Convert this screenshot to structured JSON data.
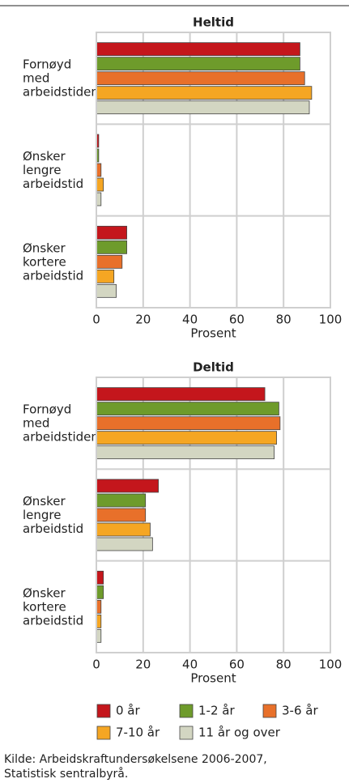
{
  "chart_data": [
    {
      "type": "bar",
      "orientation": "horizontal",
      "title": "Heltid",
      "xlabel": "Prosent",
      "categories": [
        "Fornøyd med arbeidstiden",
        "Ønsker lengre arbeidstid",
        "Ønsker kortere arbeidstid"
      ],
      "series": [
        {
          "name": "0 år",
          "color": "#c4161c",
          "values": [
            87,
            1,
            13
          ]
        },
        {
          "name": "1-2 år",
          "color": "#6e9b2b",
          "values": [
            87,
            1,
            13
          ]
        },
        {
          "name": "3-6 år",
          "color": "#e8702a",
          "values": [
            89,
            2,
            11
          ]
        },
        {
          "name": "7-10 år",
          "color": "#f5a623",
          "values": [
            92,
            3,
            7.5
          ]
        },
        {
          "name": "11 år og over",
          "color": "#d3d6c2",
          "values": [
            91,
            2,
            8.5
          ]
        }
      ],
      "xlim": [
        0,
        100
      ],
      "xticks": [
        0,
        20,
        40,
        60,
        80,
        100
      ],
      "grid": true
    },
    {
      "type": "bar",
      "orientation": "horizontal",
      "title": "Deltid",
      "xlabel": "Prosent",
      "categories": [
        "Fornøyd med arbeidstiden",
        "Ønsker lengre arbeidstid",
        "Ønsker kortere arbeidstid"
      ],
      "series": [
        {
          "color": "#c4161c",
          "values": [
            72,
            26.5,
            3
          ]
        },
        {
          "color": "#6e9b2b",
          "values": [
            78,
            21,
            3
          ]
        },
        {
          "color": "#e8702a",
          "values": [
            78.5,
            21,
            2
          ]
        },
        {
          "color": "#f5a623",
          "values": [
            77,
            23,
            2
          ]
        },
        {
          "color": "#d3d6c2",
          "values": [
            76,
            24,
            2
          ]
        }
      ],
      "xlim": [
        0,
        100
      ],
      "xticks": [
        0,
        20,
        40,
        60,
        80,
        100
      ],
      "grid": true
    }
  ],
  "source": [
    "Kilde: Arbeidskraftundersøkelsene 2006-2007,",
    "Statistisk sentralbyrå."
  ]
}
